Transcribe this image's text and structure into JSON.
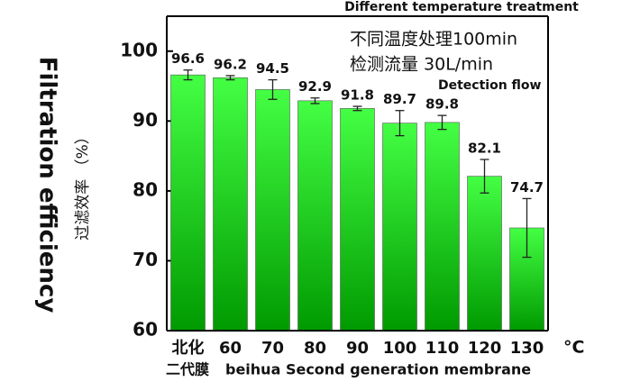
{
  "chart_data": {
    "type": "bar",
    "title": "Different temperature treatment",
    "annotations": [
      "不同温度处理100min",
      "检测流量 30L/min",
      "Detection flow"
    ],
    "y_label": "Filtration efficiency",
    "y_label_cn": "过滤效率 （%）",
    "x_label": "beihua Second generation membrane",
    "x_label_cn": "二代膜",
    "x_unit": "°C",
    "categories": [
      "北化",
      "60",
      "70",
      "80",
      "90",
      "100",
      "110",
      "120",
      "130"
    ],
    "values": [
      96.6,
      96.2,
      94.5,
      92.9,
      91.8,
      89.7,
      89.8,
      82.1,
      74.7
    ],
    "errors": [
      0.7,
      0.3,
      1.4,
      0.4,
      0.3,
      1.8,
      1.0,
      2.4,
      4.2
    ],
    "colors": [
      "#44ff44",
      "#009a00"
    ],
    "ylim": [
      60,
      105
    ],
    "yticks": [
      60,
      70,
      80,
      90,
      100
    ],
    "grid": false
  }
}
